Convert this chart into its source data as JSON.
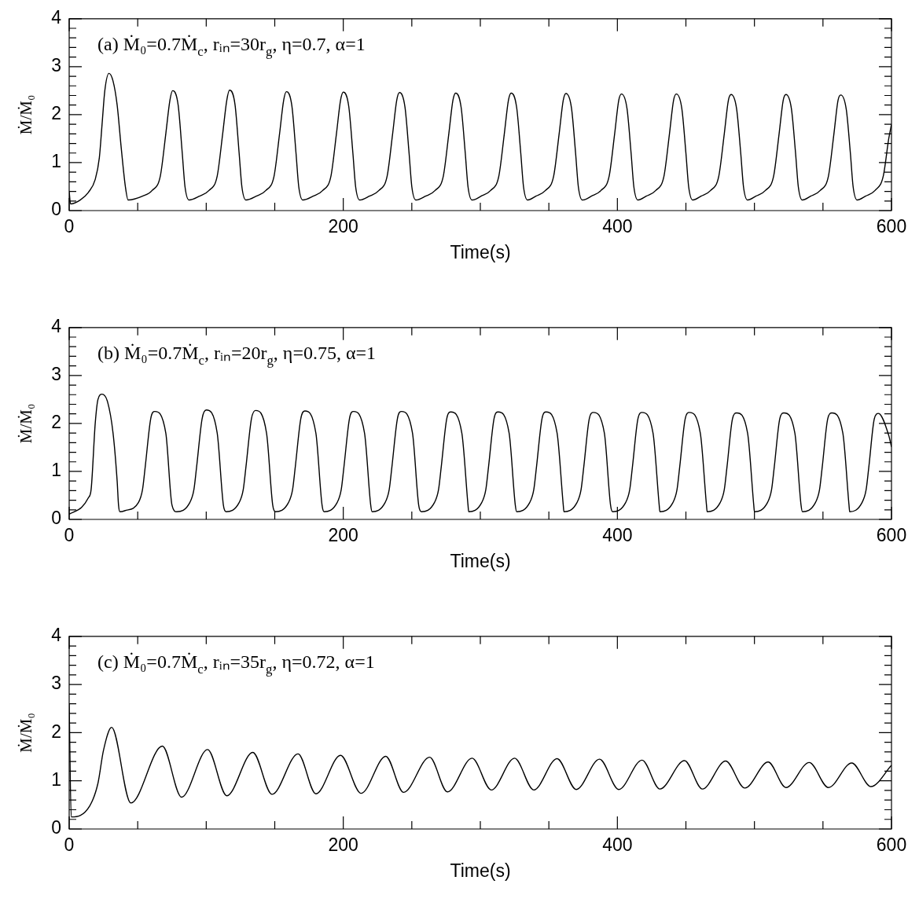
{
  "chart_data": [
    {
      "type": "line",
      "xlabel": "Time(s)",
      "ylabel": "Ṁ/Ṁ₀",
      "annotations": [
        "(a) Ṁ₀=0.7Ṁ$_{c}$, rᵢₙ=30r$_{g}$, η=0.7, α=1"
      ],
      "color": "#000000",
      "marker": "none",
      "line_style": "solid",
      "xlim": [
        0,
        600
      ],
      "ylim": [
        0,
        4
      ],
      "xticks": [
        0,
        {
          "value": 50,
          "label": null
        },
        {
          "value": 100,
          "label": null
        },
        {
          "value": 150,
          "label": null
        },
        200,
        {
          "value": 250,
          "label": null
        },
        {
          "value": 300,
          "label": null
        },
        {
          "value": 350,
          "label": null
        },
        400,
        {
          "value": 450,
          "label": null
        },
        {
          "value": 500,
          "label": null
        },
        {
          "value": 550,
          "label": null
        },
        600
      ],
      "yticks": [
        0,
        {
          "value": 0.2,
          "label": null
        },
        {
          "value": 0.4,
          "label": null
        },
        {
          "value": 0.6,
          "label": null
        },
        {
          "value": 0.8,
          "label": null
        },
        1,
        {
          "value": 1.2,
          "label": null
        },
        {
          "value": 1.4,
          "label": null
        },
        {
          "value": 1.6,
          "label": null
        },
        {
          "value": 1.8,
          "label": null
        },
        2,
        {
          "value": 2.2,
          "label": null
        },
        {
          "value": 2.4,
          "label": null
        },
        {
          "value": 2.6,
          "label": null
        },
        {
          "value": 2.8,
          "label": null
        },
        3,
        {
          "value": 3.2,
          "label": null
        },
        {
          "value": 3.4,
          "label": null
        },
        {
          "value": 3.6,
          "label": null
        },
        {
          "value": 3.8,
          "label": null
        },
        4
      ],
      "x": [
        0,
        1,
        8,
        14,
        19,
        22,
        24,
        26,
        29,
        32,
        35,
        38,
        41,
        43,
        53.5,
        60.5,
        66.5,
        70.5,
        73.5,
        75.5,
        79.5,
        82.5,
        84.5,
        87.5,
        95,
        102,
        108,
        112,
        115,
        117,
        121,
        124,
        126,
        129,
        136.5,
        143.5,
        149.5,
        153.5,
        156.5,
        158.5,
        162.5,
        165.5,
        167.5,
        170.5,
        178,
        185,
        191,
        195,
        198,
        200,
        204,
        207,
        209,
        212,
        219,
        226,
        232,
        236,
        239,
        241,
        245,
        248,
        250,
        253,
        260,
        267,
        273,
        277,
        280,
        282,
        286,
        289,
        291,
        294,
        300.5,
        307.5,
        313.5,
        317.5,
        320.5,
        322.5,
        326.5,
        329.5,
        331.5,
        334.5,
        340.5,
        347.5,
        353.5,
        357.5,
        360.5,
        362.5,
        366.5,
        369.5,
        371.5,
        374.5,
        381,
        388,
        394,
        398,
        401,
        403,
        407,
        410,
        412,
        415,
        421,
        428,
        434,
        438,
        441,
        443,
        447,
        450,
        452,
        455,
        461,
        468,
        474,
        478,
        481,
        483,
        487,
        490,
        492,
        495,
        501,
        508,
        514,
        518,
        521,
        523,
        527,
        530,
        532,
        535,
        541,
        548,
        554,
        558,
        561,
        563,
        567,
        570,
        572,
        575,
        581,
        588,
        594,
        598,
        600
      ],
      "values": [
        0.4,
        0.14,
        0.22,
        0.38,
        0.65,
        1.1,
        1.8,
        2.5,
        2.86,
        2.7,
        2.2,
        1.3,
        0.5,
        0.22,
        0.3,
        0.42,
        0.72,
        1.6,
        2.3,
        2.5,
        2.2,
        1.2,
        0.5,
        0.22,
        0.3,
        0.42,
        0.72,
        1.6,
        2.3,
        2.51,
        2.21,
        1.2,
        0.5,
        0.22,
        0.3,
        0.42,
        0.72,
        1.6,
        2.3,
        2.48,
        2.18,
        1.2,
        0.5,
        0.22,
        0.3,
        0.42,
        0.72,
        1.6,
        2.3,
        2.47,
        2.17,
        1.2,
        0.5,
        0.22,
        0.3,
        0.42,
        0.72,
        1.6,
        2.3,
        2.46,
        2.16,
        1.2,
        0.5,
        0.22,
        0.3,
        0.42,
        0.72,
        1.6,
        2.3,
        2.45,
        2.15,
        1.2,
        0.5,
        0.22,
        0.3,
        0.42,
        0.72,
        1.6,
        2.3,
        2.45,
        2.15,
        1.2,
        0.5,
        0.22,
        0.3,
        0.42,
        0.72,
        1.6,
        2.3,
        2.44,
        2.14,
        1.2,
        0.5,
        0.22,
        0.3,
        0.42,
        0.72,
        1.6,
        2.3,
        2.43,
        2.13,
        1.2,
        0.5,
        0.22,
        0.3,
        0.42,
        0.72,
        1.6,
        2.3,
        2.43,
        2.13,
        1.2,
        0.5,
        0.22,
        0.3,
        0.42,
        0.72,
        1.6,
        2.3,
        2.42,
        2.12,
        1.2,
        0.5,
        0.22,
        0.3,
        0.42,
        0.72,
        1.6,
        2.3,
        2.42,
        2.12,
        1.2,
        0.5,
        0.22,
        0.3,
        0.42,
        0.72,
        1.6,
        2.3,
        2.41,
        2.11,
        1.2,
        0.5,
        0.22,
        0.3,
        0.42,
        0.72,
        1.5,
        1.8
      ]
    },
    {
      "type": "line",
      "xlabel": "Time(s)",
      "ylabel": "Ṁ/Ṁ₀",
      "annotations": [
        "(b) Ṁ₀=0.7Ṁ$_{c}$, rᵢₙ=20r$_{g}$, η=0.75, α=1"
      ],
      "color": "#000000",
      "marker": "none",
      "line_style": "solid",
      "xlim": [
        0,
        600
      ],
      "ylim": [
        0,
        4
      ],
      "xticks": [
        0,
        {
          "value": 50,
          "label": null
        },
        {
          "value": 100,
          "label": null
        },
        {
          "value": 150,
          "label": null
        },
        200,
        {
          "value": 250,
          "label": null
        },
        {
          "value": 300,
          "label": null
        },
        {
          "value": 350,
          "label": null
        },
        400,
        {
          "value": 450,
          "label": null
        },
        {
          "value": 500,
          "label": null
        },
        {
          "value": 550,
          "label": null
        },
        600
      ],
      "yticks": [
        0,
        {
          "value": 0.2,
          "label": null
        },
        {
          "value": 0.4,
          "label": null
        },
        {
          "value": 0.6,
          "label": null
        },
        {
          "value": 0.8,
          "label": null
        },
        1,
        {
          "value": 1.2,
          "label": null
        },
        {
          "value": 1.4,
          "label": null
        },
        {
          "value": 1.6,
          "label": null
        },
        {
          "value": 1.8,
          "label": null
        },
        2,
        {
          "value": 2.2,
          "label": null
        },
        {
          "value": 2.4,
          "label": null
        },
        {
          "value": 2.6,
          "label": null
        },
        {
          "value": 2.8,
          "label": null
        },
        3,
        {
          "value": 3.2,
          "label": null
        },
        {
          "value": 3.4,
          "label": null
        },
        {
          "value": 3.6,
          "label": null
        },
        {
          "value": 3.8,
          "label": null
        },
        4
      ],
      "x": [
        0,
        9,
        14,
        16,
        19,
        21,
        24,
        28,
        32,
        35,
        36,
        37,
        40.5,
        50.5,
        53.5,
        55.5,
        59.5,
        62.5,
        70.5,
        75,
        78.5,
        88,
        91,
        93,
        97,
        100,
        108,
        112.5,
        114.5,
        124,
        127,
        129,
        133,
        136,
        144,
        148.5,
        150.5,
        160,
        163,
        165,
        169,
        172,
        180,
        184.5,
        186,
        195.5,
        198.5,
        200.5,
        204.5,
        207.5,
        215.5,
        220,
        221,
        230.5,
        233.5,
        235.5,
        239.5,
        242.5,
        250.5,
        255,
        257,
        266.5,
        269.5,
        271.5,
        275.5,
        278.5,
        286.5,
        291,
        291.5,
        301,
        304,
        306,
        310,
        313,
        321,
        325.5,
        326.5,
        336,
        339,
        341,
        345,
        348,
        356,
        360.5,
        361,
        370.5,
        373.5,
        375.5,
        379.5,
        382.5,
        390.5,
        395,
        396.5,
        406,
        409,
        411,
        415,
        418,
        426,
        430.5,
        431,
        440.5,
        443.5,
        445.5,
        449.5,
        452.5,
        460.5,
        465,
        465.5,
        475,
        478,
        480,
        484,
        487,
        495,
        499.5,
        500,
        509.5,
        512.5,
        514.5,
        518.5,
        521.5,
        529.5,
        534,
        535,
        544.5,
        547.5,
        549.5,
        553.5,
        556.5,
        564.5,
        569,
        569.5,
        578.5,
        581.5,
        583.5,
        587.5,
        590.5,
        598,
        600
      ],
      "values": [
        0.11,
        0.25,
        0.45,
        0.62,
        2.0,
        2.5,
        2.61,
        2.45,
        1.8,
        0.8,
        0.3,
        0.16,
        0.18,
        0.35,
        0.62,
        1.1,
        2.1,
        2.25,
        1.8,
        0.3,
        0.16,
        0.35,
        0.62,
        1.1,
        2.1,
        2.28,
        1.8,
        0.3,
        0.16,
        0.35,
        0.62,
        1.1,
        2.1,
        2.27,
        1.8,
        0.3,
        0.16,
        0.35,
        0.62,
        1.1,
        2.1,
        2.26,
        1.8,
        0.3,
        0.16,
        0.35,
        0.62,
        1.1,
        2.1,
        2.25,
        1.8,
        0.3,
        0.16,
        0.35,
        0.62,
        1.1,
        2.1,
        2.25,
        1.8,
        0.3,
        0.16,
        0.35,
        0.62,
        1.1,
        2.1,
        2.24,
        1.8,
        0.3,
        0.16,
        0.35,
        0.62,
        1.1,
        2.1,
        2.24,
        1.8,
        0.3,
        0.16,
        0.35,
        0.62,
        1.1,
        2.1,
        2.24,
        1.8,
        0.3,
        0.16,
        0.35,
        0.62,
        1.1,
        2.1,
        2.23,
        1.8,
        0.3,
        0.16,
        0.35,
        0.62,
        1.1,
        2.1,
        2.23,
        1.8,
        0.3,
        0.16,
        0.35,
        0.62,
        1.1,
        2.1,
        2.23,
        1.8,
        0.3,
        0.16,
        0.35,
        0.62,
        1.1,
        2.1,
        2.22,
        1.8,
        0.3,
        0.16,
        0.35,
        0.62,
        1.1,
        2.1,
        2.22,
        1.8,
        0.3,
        0.16,
        0.35,
        0.62,
        1.1,
        2.1,
        2.22,
        1.8,
        0.3,
        0.16,
        0.35,
        0.62,
        1.1,
        2.1,
        2.21,
        1.75,
        1.51
      ]
    },
    {
      "type": "line",
      "xlabel": "Time(s)",
      "ylabel": "Ṁ/Ṁ₀",
      "annotations": [
        "(c) Ṁ₀=0.7Ṁ$_{c}$, rᵢₙ=35r$_{g}$, η=0.72, α=1"
      ],
      "color": "#000000",
      "marker": "none",
      "line_style": "solid",
      "xlim": [
        0,
        600
      ],
      "ylim": [
        0,
        4
      ],
      "xticks": [
        0,
        {
          "value": 50,
          "label": null
        },
        {
          "value": 100,
          "label": null
        },
        {
          "value": 150,
          "label": null
        },
        200,
        {
          "value": 250,
          "label": null
        },
        {
          "value": 300,
          "label": null
        },
        {
          "value": 350,
          "label": null
        },
        400,
        {
          "value": 450,
          "label": null
        },
        {
          "value": 500,
          "label": null
        },
        {
          "value": 550,
          "label": null
        },
        600
      ],
      "yticks": [
        0,
        {
          "value": 0.2,
          "label": null
        },
        {
          "value": 0.4,
          "label": null
        },
        {
          "value": 0.6,
          "label": null
        },
        {
          "value": 0.8,
          "label": null
        },
        1,
        {
          "value": 1.2,
          "label": null
        },
        {
          "value": 1.4,
          "label": null
        },
        {
          "value": 1.6,
          "label": null
        },
        {
          "value": 1.8,
          "label": null
        },
        2,
        {
          "value": 2.2,
          "label": null
        },
        {
          "value": 2.4,
          "label": null
        },
        {
          "value": 2.6,
          "label": null
        },
        {
          "value": 2.8,
          "label": null
        },
        3,
        {
          "value": 3.2,
          "label": null
        },
        {
          "value": 3.4,
          "label": null
        },
        {
          "value": 3.6,
          "label": null
        },
        {
          "value": 3.8,
          "label": null
        },
        4
      ],
      "x": [
        0,
        1.5,
        15,
        21,
        25,
        31,
        45,
        68,
        82,
        101,
        115,
        134,
        148,
        167,
        180,
        198,
        213,
        231,
        244,
        263,
        276,
        294,
        308,
        325,
        339,
        356,
        370,
        387,
        401,
        418,
        431,
        449,
        462,
        479,
        493,
        510,
        523,
        540,
        554,
        571,
        585,
        600
      ],
      "values": [
        2.6,
        0.25,
        0.48,
        0.95,
        1.63,
        2.11,
        0.54,
        1.72,
        0.66,
        1.65,
        0.69,
        1.59,
        0.72,
        1.56,
        0.73,
        1.53,
        0.74,
        1.51,
        0.76,
        1.49,
        0.77,
        1.47,
        0.81,
        1.47,
        0.81,
        1.46,
        0.82,
        1.45,
        0.82,
        1.43,
        0.83,
        1.42,
        0.83,
        1.41,
        0.85,
        1.39,
        0.86,
        1.38,
        0.86,
        1.37,
        0.88,
        1.32
      ]
    }
  ]
}
